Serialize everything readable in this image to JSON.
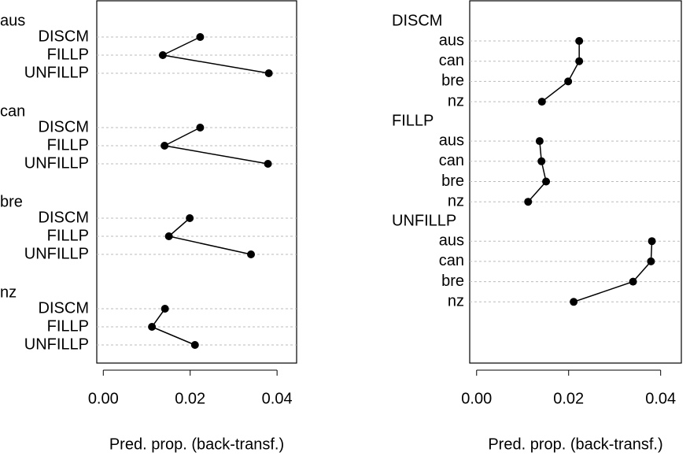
{
  "chart_data": [
    {
      "type": "dotplot",
      "xlabel": "Pred. prop. (back-transf.)",
      "xlim": [
        -0.0015,
        0.0445
      ],
      "xticks": [
        {
          "value": 0,
          "label": "0.00"
        },
        {
          "value": 0.02,
          "label": "0.02"
        },
        {
          "value": 0.04,
          "label": "0.04"
        }
      ],
      "color": "#000000",
      "grid": true,
      "groups": [
        {
          "name": "aus",
          "categories": [
            "DISCM",
            "FILLP",
            "UNFILLP"
          ],
          "values": [
            0.0223,
            0.0137,
            0.0381
          ]
        },
        {
          "name": "can",
          "categories": [
            "DISCM",
            "FILLP",
            "UNFILLP"
          ],
          "values": [
            0.0223,
            0.0141,
            0.0379
          ]
        },
        {
          "name": "bre",
          "categories": [
            "DISCM",
            "FILLP",
            "UNFILLP"
          ],
          "values": [
            0.0199,
            0.0151,
            0.034
          ]
        },
        {
          "name": "nz",
          "categories": [
            "DISCM",
            "FILLP",
            "UNFILLP"
          ],
          "values": [
            0.0142,
            0.0112,
            0.0211
          ]
        }
      ]
    },
    {
      "type": "dotplot",
      "xlabel": "Pred. prop. (back-transf.)",
      "xlim": [
        -0.0015,
        0.0445
      ],
      "xticks": [
        {
          "value": 0,
          "label": "0.00"
        },
        {
          "value": 0.02,
          "label": "0.02"
        },
        {
          "value": 0.04,
          "label": "0.04"
        }
      ],
      "color": "#000000",
      "grid": true,
      "groups": [
        {
          "name": "DISCM",
          "categories": [
            "aus",
            "can",
            "bre",
            "nz"
          ],
          "values": [
            0.0223,
            0.0223,
            0.0199,
            0.0142
          ]
        },
        {
          "name": "FILLP",
          "categories": [
            "aus",
            "can",
            "bre",
            "nz"
          ],
          "values": [
            0.0137,
            0.0141,
            0.0151,
            0.0112
          ]
        },
        {
          "name": "UNFILLP",
          "categories": [
            "aus",
            "can",
            "bre",
            "nz"
          ],
          "values": [
            0.0381,
            0.0379,
            0.034,
            0.0211
          ]
        }
      ]
    }
  ]
}
